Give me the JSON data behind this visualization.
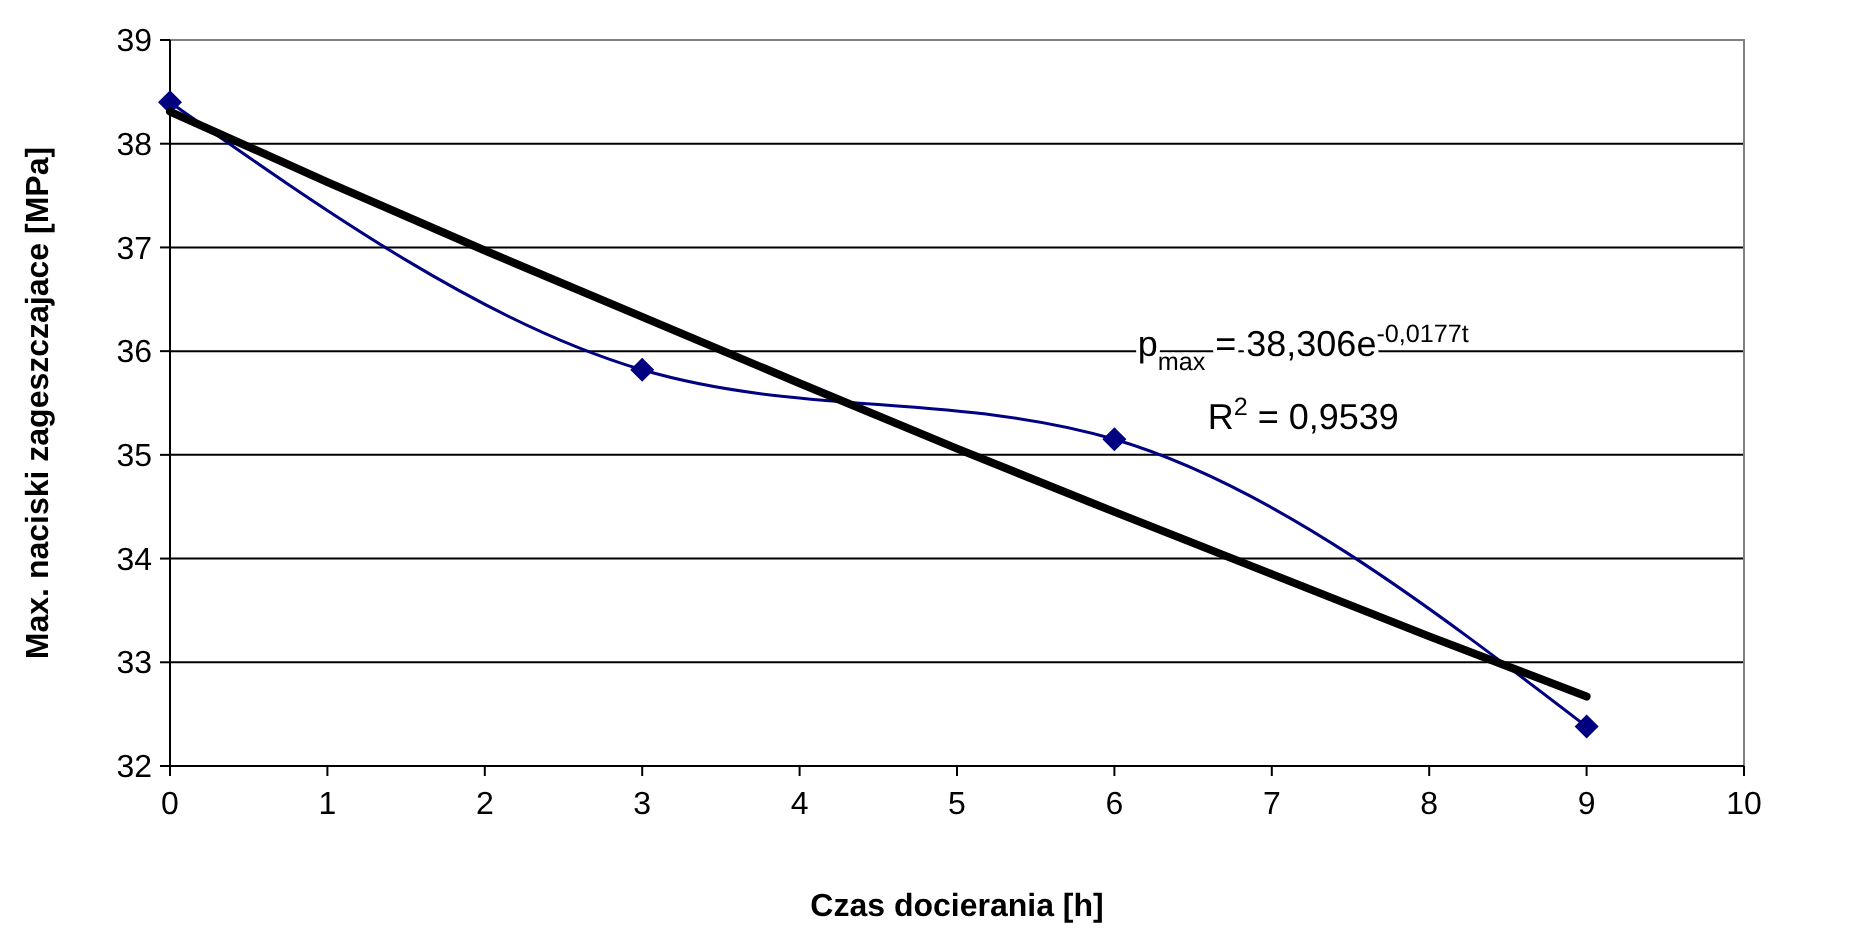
{
  "chart_data": {
    "type": "line",
    "xlabel": "Czas docierania [h]",
    "ylabel": "Max. naciski zageszczajace [MPa]",
    "x": [
      0,
      3,
      6,
      9
    ],
    "xlim": [
      0,
      10
    ],
    "xticks": [
      0,
      1,
      2,
      3,
      4,
      5,
      6,
      7,
      8,
      9,
      10
    ],
    "ylim": [
      32,
      39
    ],
    "yticks": [
      32,
      33,
      34,
      35,
      36,
      37,
      38,
      39
    ],
    "grid": "y",
    "series": [
      {
        "color": "#000080",
        "marker": "diamond",
        "values": [
          38.4,
          35.82,
          35.15,
          32.38
        ]
      },
      {
        "type": "line",
        "color": "#000000",
        "marker": "none",
        "x": [
          0,
          1,
          2,
          3,
          4,
          5,
          6,
          7,
          8,
          9
        ],
        "values": [
          38.31,
          37.63,
          36.97,
          36.33,
          35.69,
          35.06,
          34.45,
          33.85,
          33.25,
          32.67
        ]
      }
    ],
    "annotations": [
      "p$_{max}$ = 38,306e$^{-0,0177t}$",
      "R$^{2}$ = 0,9539"
    ]
  }
}
